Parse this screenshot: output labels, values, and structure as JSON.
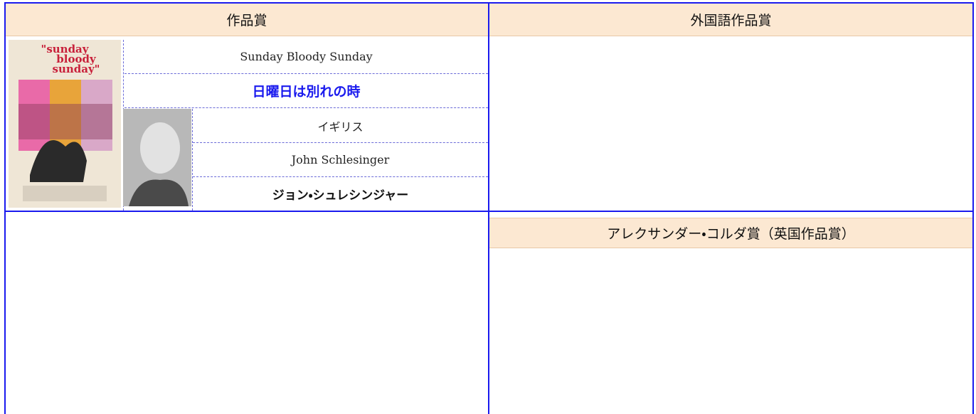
{
  "headers": {
    "left": "作品賞",
    "right": "外国語作品賞"
  },
  "film": {
    "english_title": "Sunday Bloody Sunday",
    "japanese_title": "日曜日は別れの時",
    "country": "イギリス"
  },
  "director": {
    "english_name": "John Schlesinger",
    "japanese_name": "ジョン・シュレシンジャー"
  },
  "korda": {
    "title": "アレクサンダー・コルダ賞（英国作品賞）"
  }
}
